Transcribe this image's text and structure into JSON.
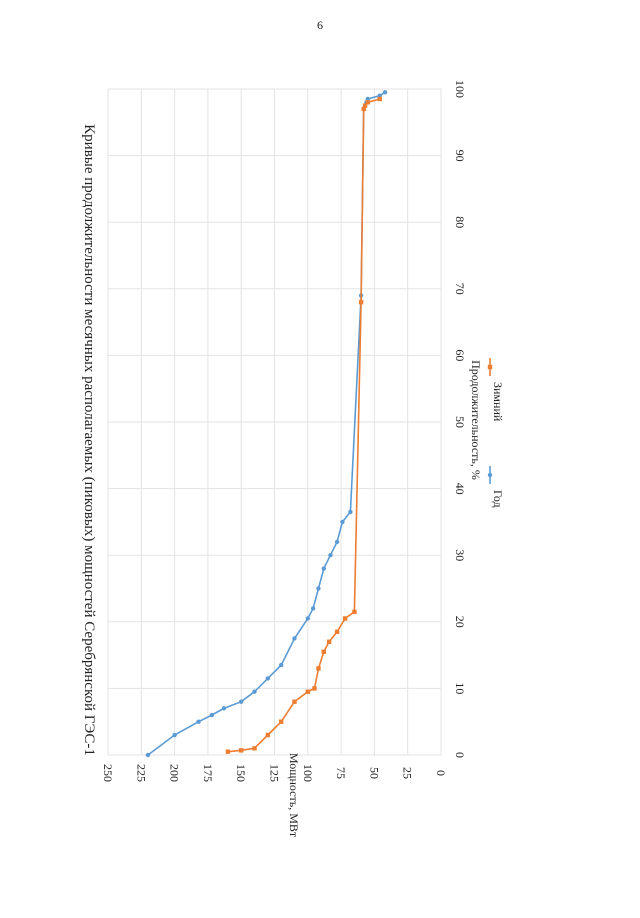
{
  "page": {
    "number": "6"
  },
  "chart_data": {
    "type": "line",
    "title": "Кривые продолжительности месячных располагаемых (пиковых) мощностей Серебрянской ГЭС-1",
    "xlabel": "Продолжительность, %",
    "ylabel": "Мощность, МВт",
    "xlim": [
      0,
      100
    ],
    "ylim": [
      0,
      250
    ],
    "x_ticks": [
      0,
      10,
      20,
      30,
      40,
      50,
      60,
      70,
      80,
      90,
      100
    ],
    "y_ticks": [
      0,
      25,
      50,
      75,
      100,
      125,
      150,
      175,
      200,
      225,
      250
    ],
    "grid": true,
    "legend_position": "bottom",
    "orientation": "rotated-90-clockwise",
    "series": [
      {
        "name": "Год",
        "color": "#5b9bd5",
        "x": [
          0,
          3,
          5,
          6,
          7,
          8,
          9.5,
          11.5,
          13.5,
          17.5,
          20.5,
          22,
          25,
          28,
          30,
          32,
          35,
          36.5,
          69,
          97,
          97.5,
          98,
          98.5,
          99,
          99.5
        ],
        "y": [
          220,
          200,
          182,
          172,
          163,
          150,
          140,
          130,
          120,
          110,
          100,
          96,
          92,
          88,
          83,
          78,
          74,
          68,
          60,
          58,
          57,
          56,
          55,
          46,
          42
        ]
      },
      {
        "name": "Зимний",
        "color": "#ed7d31",
        "x": [
          0.5,
          0.7,
          1,
          3,
          5,
          8,
          9.5,
          10,
          13,
          15.5,
          17,
          18.5,
          20.5,
          21.5,
          68,
          97,
          97.5,
          98,
          98.5
        ],
        "y": [
          160,
          150,
          140,
          130,
          120,
          110,
          100,
          95,
          92,
          88,
          84,
          78,
          72,
          65,
          60,
          58,
          57,
          55,
          46
        ]
      }
    ]
  }
}
